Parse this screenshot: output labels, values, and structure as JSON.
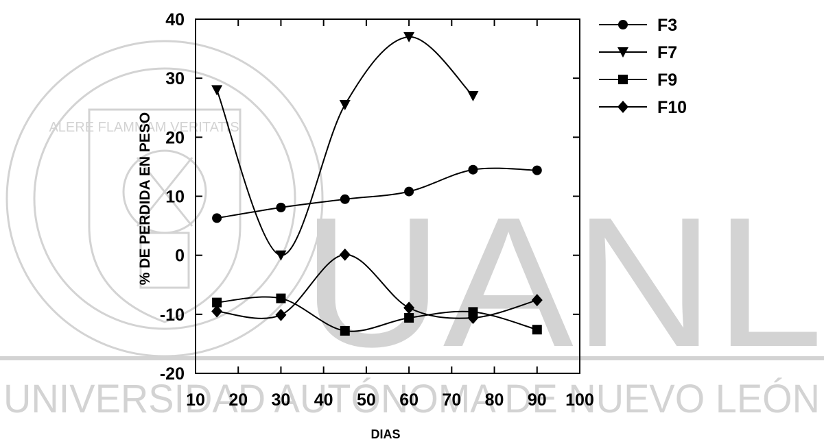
{
  "watermark": {
    "wordmark": "UANL",
    "university_name": "UNIVERSIDAD AUTÓNOMA DE NUEVO LEÓN",
    "seal_text": "UNIVERSIDAD AUTONOMA DE NUEVO LEON",
    "motto": "ALERE FLAMMAM VERITATIS",
    "color": "#b0b0b0"
  },
  "chart_data": {
    "type": "line",
    "title": "",
    "xlabel": "DIAS",
    "ylabel": "% DE PERDIDA EN PESO",
    "xlim": [
      10,
      100
    ],
    "ylim": [
      -20,
      40
    ],
    "xticks": [
      10,
      20,
      30,
      40,
      50,
      60,
      70,
      80,
      90,
      100
    ],
    "yticks": [
      -20,
      -10,
      0,
      10,
      20,
      30,
      40
    ],
    "grid": false,
    "legend_position": "outside-right",
    "line_color": "#000000",
    "series": [
      {
        "name": "F3",
        "marker": "circle",
        "x": [
          15,
          30,
          45,
          60,
          75,
          90
        ],
        "y": [
          6.3,
          8.1,
          9.5,
          10.8,
          14.5,
          14.4
        ]
      },
      {
        "name": "F7",
        "marker": "triangle-down",
        "x": [
          15,
          30,
          45,
          60,
          75
        ],
        "y": [
          28.0,
          0.0,
          25.5,
          37.0,
          27.0
        ]
      },
      {
        "name": "F9",
        "marker": "square",
        "x": [
          15,
          30,
          45,
          60,
          75,
          90
        ],
        "y": [
          -8.0,
          -7.3,
          -12.8,
          -10.6,
          -9.6,
          -12.6
        ]
      },
      {
        "name": "F10",
        "marker": "diamond",
        "x": [
          15,
          30,
          45,
          60,
          75,
          90
        ],
        "y": [
          -9.5,
          -10.1,
          0.1,
          -8.9,
          -10.6,
          -7.6
        ]
      }
    ]
  }
}
